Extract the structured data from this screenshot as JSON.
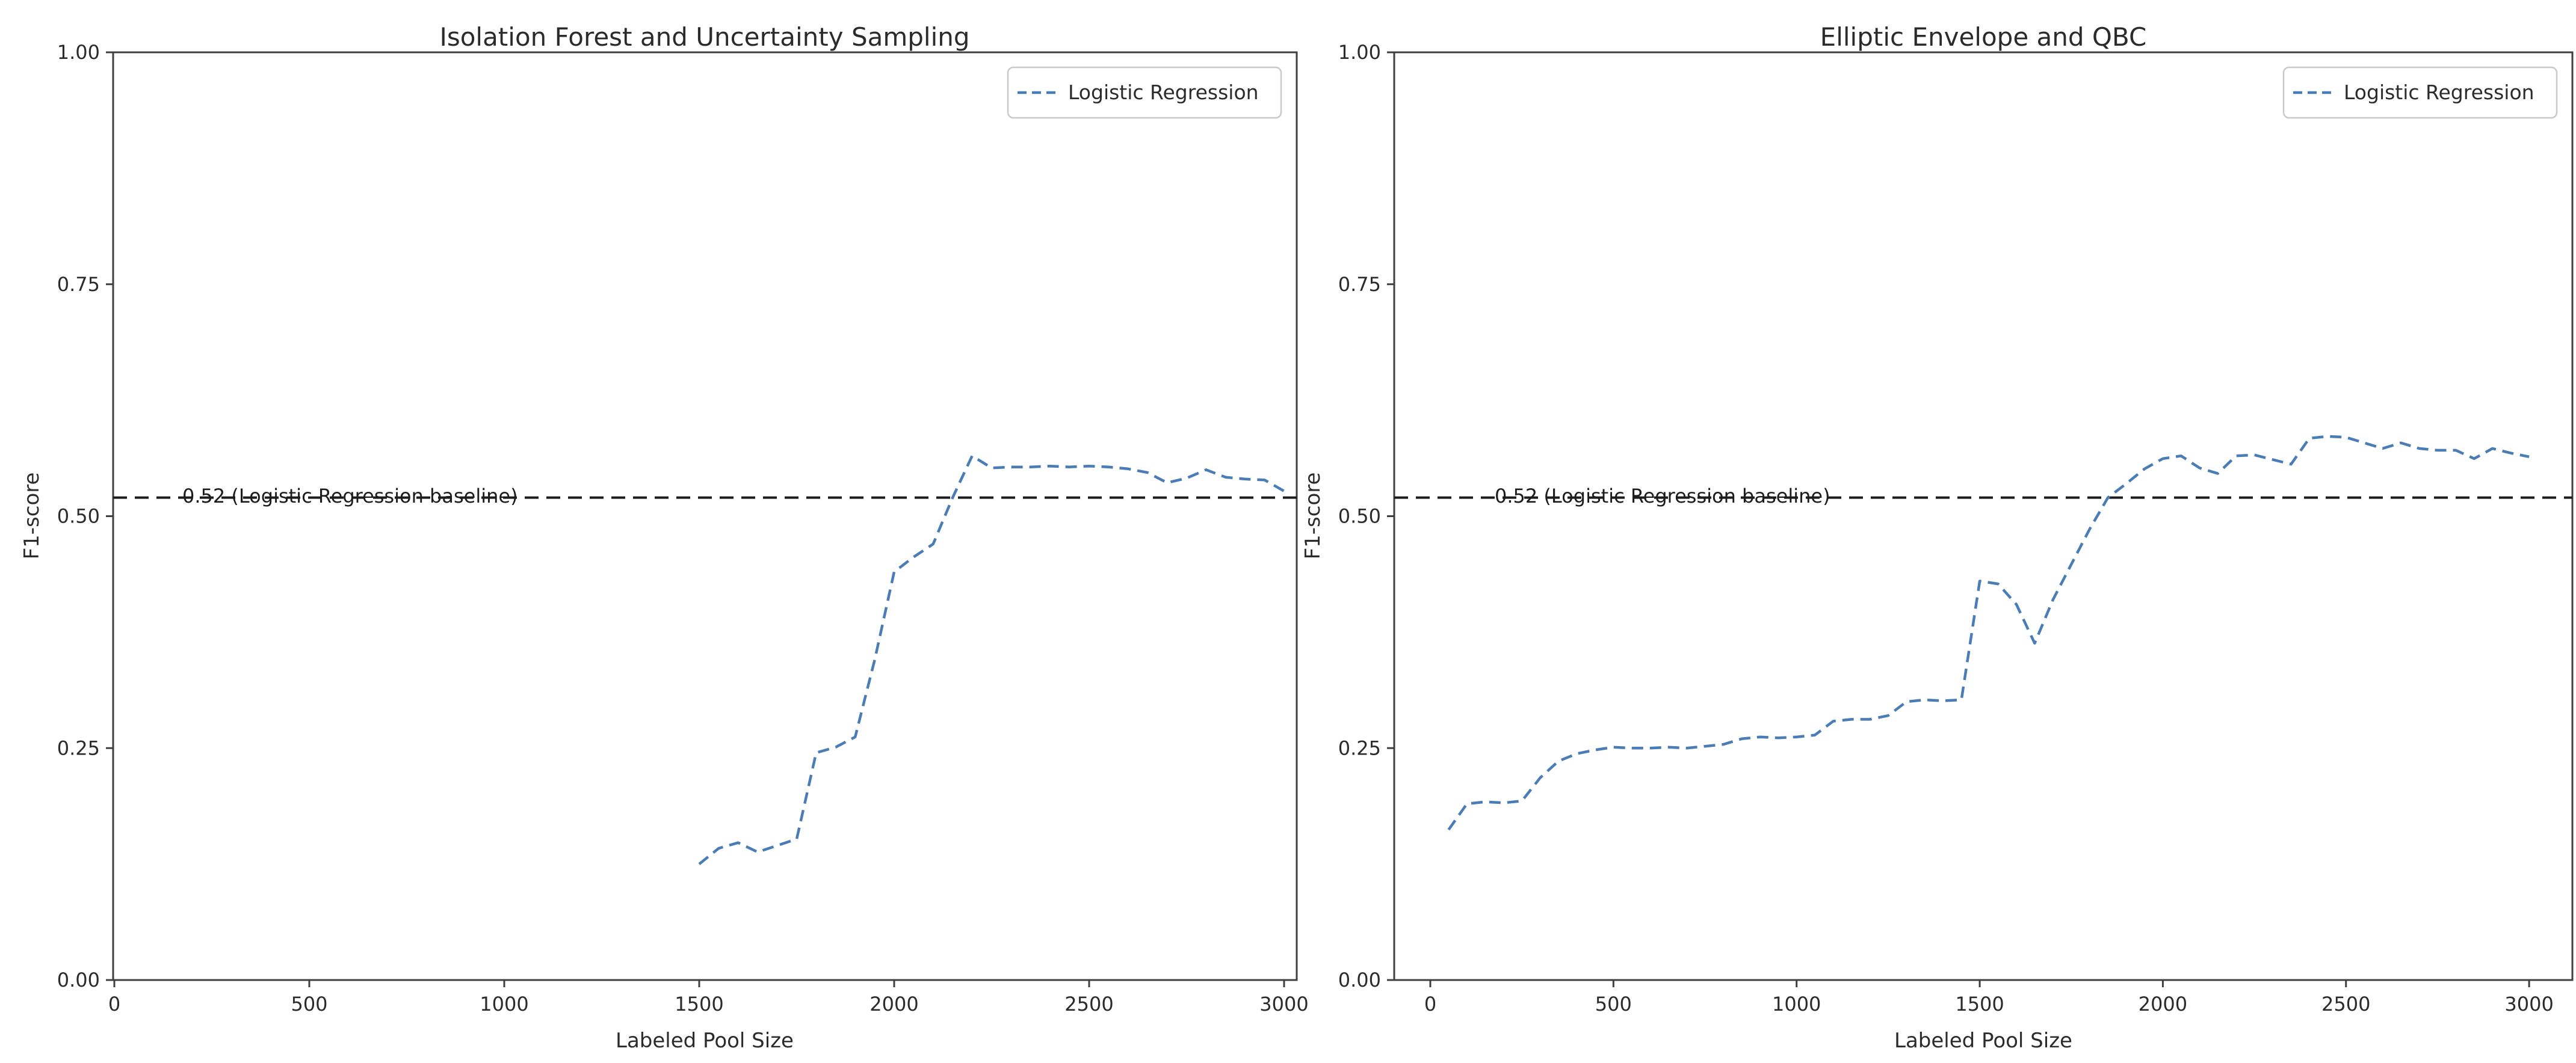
{
  "figure_background": "#ffffff",
  "colors": {
    "series_blue": "#4a7cb5",
    "baseline_black": "#1c1c1c",
    "axis_gray": "#3f3f3f",
    "text_dark": "#2b2b2b",
    "legend_border": "#c9c9c9"
  },
  "chart_data": [
    {
      "type": "line",
      "title": "Isolation Forest and Uncertainty Sampling",
      "xlabel": "Labeled Pool Size",
      "ylabel": "F1-score",
      "xlim": [
        -10,
        3035
      ],
      "ylim": [
        0.0,
        1.0
      ],
      "grid": false,
      "x_ticks": [
        0,
        500,
        1000,
        1500,
        2000,
        2500,
        3000
      ],
      "y_ticks": [
        "0.00",
        "0.25",
        "0.50",
        "0.75",
        "1.00"
      ],
      "y_tick_values": [
        0,
        0.25,
        0.5,
        0.75,
        1
      ],
      "legend": {
        "position": "upper right",
        "label": "Logistic Regression",
        "line_style": "dashed"
      },
      "baseline": {
        "value": 0.52,
        "label": "0.52 (Logistic Regression baseline)",
        "style": "dashed",
        "label_x": 175
      },
      "series": [
        {
          "name": "Logistic Regression",
          "style": "dashed",
          "x": [
            1500,
            1550,
            1600,
            1650,
            1700,
            1750,
            1800,
            1850,
            1900,
            1950,
            2000,
            2050,
            2100,
            2150,
            2200,
            2250,
            2300,
            2350,
            2400,
            2450,
            2500,
            2550,
            2600,
            2650,
            2700,
            2750,
            2800,
            2850,
            2900,
            2950,
            3000
          ],
          "y": [
            0.125,
            0.142,
            0.148,
            0.138,
            0.145,
            0.152,
            0.245,
            0.251,
            0.262,
            0.345,
            0.44,
            0.456,
            0.47,
            0.52,
            0.565,
            0.552,
            0.553,
            0.553,
            0.554,
            0.553,
            0.554,
            0.553,
            0.551,
            0.547,
            0.536,
            0.541,
            0.55,
            0.542,
            0.54,
            0.539,
            0.527
          ]
        }
      ]
    },
    {
      "type": "line",
      "title": "Elliptic Envelope and QBC",
      "xlabel": "Labeled Pool Size",
      "ylabel": "F1-score",
      "xlim": [
        -100,
        3120
      ],
      "ylim": [
        0.0,
        1.0
      ],
      "grid": false,
      "x_ticks": [
        0,
        500,
        1000,
        1500,
        2000,
        2500,
        3000
      ],
      "y_ticks": [
        "0.00",
        "0.25",
        "0.50",
        "0.75",
        "1.00"
      ],
      "y_tick_values": [
        0,
        0.25,
        0.5,
        0.75,
        1
      ],
      "legend": {
        "position": "upper right",
        "label": "Logistic Regression",
        "line_style": "dashed"
      },
      "baseline": {
        "value": 0.52,
        "label": "0.52 (Logistic Regression baseline)",
        "style": "dashed",
        "label_x": 175
      },
      "series": [
        {
          "name": "Logistic Regression",
          "style": "dashed",
          "x": [
            50,
            100,
            150,
            200,
            250,
            300,
            350,
            400,
            450,
            500,
            550,
            600,
            650,
            700,
            750,
            800,
            850,
            900,
            950,
            1000,
            1050,
            1100,
            1150,
            1200,
            1250,
            1300,
            1350,
            1400,
            1450,
            1500,
            1550,
            1600,
            1650,
            1700,
            1750,
            1800,
            1850,
            1900,
            1950,
            2000,
            2050,
            2100,
            2150,
            2200,
            2250,
            2300,
            2350,
            2400,
            2450,
            2500,
            2550,
            2600,
            2650,
            2700,
            2750,
            2800,
            2850,
            2900,
            2950,
            3000
          ],
          "y": [
            0.162,
            0.19,
            0.192,
            0.191,
            0.193,
            0.218,
            0.236,
            0.244,
            0.248,
            0.251,
            0.25,
            0.25,
            0.251,
            0.25,
            0.252,
            0.254,
            0.26,
            0.262,
            0.261,
            0.262,
            0.264,
            0.279,
            0.281,
            0.281,
            0.285,
            0.3,
            0.302,
            0.301,
            0.302,
            0.43,
            0.427,
            0.405,
            0.363,
            0.41,
            0.448,
            0.486,
            0.52,
            0.535,
            0.551,
            0.562,
            0.565,
            0.552,
            0.546,
            0.565,
            0.566,
            0.561,
            0.556,
            0.584,
            0.586,
            0.585,
            0.579,
            0.573,
            0.579,
            0.573,
            0.571,
            0.571,
            0.562,
            0.573,
            0.568,
            0.564
          ]
        }
      ]
    }
  ]
}
